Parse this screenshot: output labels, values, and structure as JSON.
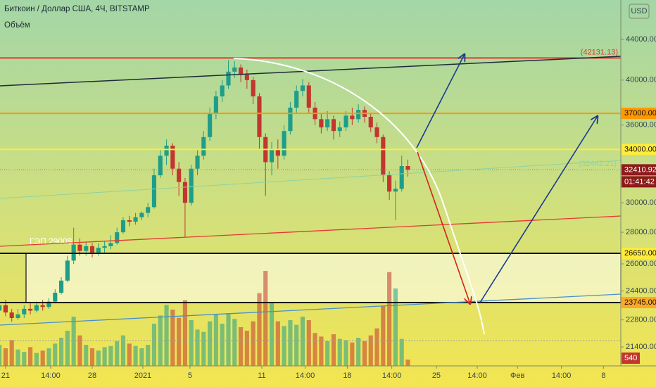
{
  "chart_data": {
    "type": "candlestick",
    "title": "Биткоин / Доллар США, 4Ч, BITSTAMP",
    "subtitle": "Объём",
    "currency": "USD",
    "log_scale": true,
    "up_color": "#1e9e8a",
    "down_color": "#c2362f",
    "xlim": [
      -0.45,
      49.7
    ],
    "ylim": [
      20470,
      48260
    ],
    "volume_lim": [
      0,
      9000
    ],
    "xticks": [
      {
        "value": 0,
        "label": "21"
      },
      {
        "value": 3.64,
        "label": "14:00"
      },
      {
        "value": 7,
        "label": "28"
      },
      {
        "value": 11.09,
        "label": "2021"
      },
      {
        "value": 14.9,
        "label": "5"
      },
      {
        "value": 20.7,
        "label": "11"
      },
      {
        "value": 24.2,
        "label": "14:00"
      },
      {
        "value": 27.6,
        "label": "18"
      },
      {
        "value": 31.2,
        "label": "14:00"
      },
      {
        "value": 34.8,
        "label": "25"
      },
      {
        "value": 38.1,
        "label": "14:00"
      },
      {
        "value": 41.35,
        "label": "Фев"
      },
      {
        "value": 44.9,
        "label": "14:00"
      },
      {
        "value": 48.3,
        "label": "8"
      }
    ],
    "yticks": [
      {
        "value": 44000,
        "label": "44000.00"
      },
      {
        "value": 40000,
        "label": "40000.00"
      },
      {
        "value": 36000,
        "label": "36000.00"
      },
      {
        "value": 30000,
        "label": "30000.00"
      },
      {
        "value": 28000,
        "label": "28000.00"
      },
      {
        "value": 26000,
        "label": "26000.00"
      },
      {
        "value": 24400,
        "label": "24400.00"
      },
      {
        "value": 22800,
        "label": "22800.00"
      },
      {
        "value": 21400,
        "label": "21400.00"
      }
    ],
    "levels": [
      {
        "value": 42131.13,
        "label": "(42131.13)",
        "color": "#e53935"
      },
      {
        "value": 37000,
        "label": "37000.00",
        "color": "#ff9800"
      },
      {
        "value": 34000,
        "label": "34000.00",
        "color": "#ffeb3b"
      },
      {
        "value": 26650,
        "label": "26650.00",
        "color": "#ffeb3b"
      },
      {
        "value": 23745,
        "label": "23745.00",
        "color": "#ffa726"
      },
      {
        "value": 32410.92,
        "label": "32410.92",
        "color": "#8e1b1b"
      }
    ],
    "countdown": "01:41:42",
    "trend_label": "(32442.21)",
    "gap_label": "ГЭП 2900$",
    "x": [
      -0.5,
      0,
      0.5,
      1,
      1.5,
      2,
      2.5,
      3,
      3.5,
      4,
      4.5,
      5,
      5.5,
      6,
      6.5,
      7,
      7.5,
      8,
      8.5,
      9,
      9.5,
      10,
      10.5,
      11,
      11.5,
      12,
      12.5,
      13,
      13.5,
      14,
      14.5,
      15,
      15.5,
      16,
      16.5,
      17,
      17.5,
      18,
      18.5,
      19,
      19.5,
      20,
      20.5,
      21,
      21.5,
      22,
      22.5,
      23,
      23.5,
      24,
      24.5,
      25,
      25.5,
      26,
      26.5,
      27,
      27.5,
      28,
      28.5,
      29,
      29.5,
      30,
      30.5,
      31,
      31.5,
      32,
      32.5
    ],
    "open": [
      23300,
      23600,
      23200,
      22900,
      23100,
      23400,
      23300,
      23600,
      23500,
      23800,
      24300,
      25000,
      26200,
      27200,
      26800,
      27100,
      26700,
      27000,
      27100,
      27300,
      28000,
      28800,
      28700,
      29000,
      29300,
      29700,
      32000,
      33500,
      34300,
      32500,
      31500,
      30000,
      32500,
      33500,
      35000,
      37000,
      38500,
      39500,
      40800,
      41200,
      40500,
      40000,
      38500,
      35000,
      33000,
      34000,
      33500,
      35500,
      37500,
      39000,
      39500,
      37500,
      36500,
      35800,
      36500,
      35500,
      35800,
      36800,
      36500,
      37300,
      36700,
      35800,
      35000,
      32000,
      30800,
      31000,
      32700
    ],
    "high": [
      23800,
      23900,
      23400,
      23400,
      23600,
      23700,
      23800,
      23900,
      24000,
      24500,
      25200,
      26500,
      28300,
      27600,
      27400,
      27300,
      27300,
      27400,
      27800,
      28300,
      29000,
      29100,
      29300,
      29400,
      30000,
      32500,
      34000,
      34800,
      34500,
      33000,
      31800,
      32800,
      34000,
      35500,
      37500,
      39000,
      40000,
      41900,
      41800,
      41500,
      41000,
      40300,
      38800,
      35300,
      34600,
      34800,
      36000,
      38000,
      39500,
      40100,
      39800,
      38000,
      37000,
      37200,
      36800,
      36300,
      37200,
      37500,
      37800,
      37600,
      37000,
      36200,
      35200,
      32300,
      31600,
      33500,
      33200
    ],
    "low": [
      23100,
      23000,
      22700,
      22800,
      22900,
      23100,
      23200,
      23300,
      23400,
      23700,
      24200,
      24900,
      26000,
      26500,
      26500,
      26400,
      26500,
      26700,
      26900,
      27200,
      27900,
      28400,
      28500,
      28800,
      29000,
      29600,
      31800,
      32800,
      32000,
      30500,
      27700,
      29800,
      32000,
      33200,
      34700,
      36500,
      38000,
      39200,
      40200,
      39800,
      39200,
      37800,
      34000,
      30500,
      32000,
      32500,
      33200,
      35200,
      37000,
      38500,
      37000,
      36000,
      35300,
      35500,
      34800,
      35000,
      35500,
      36000,
      36200,
      36200,
      35400,
      34500,
      31500,
      30200,
      28800,
      30800,
      31900
    ],
    "close": [
      23600,
      23200,
      22900,
      23100,
      23400,
      23300,
      23600,
      23500,
      23800,
      24300,
      25000,
      26200,
      27200,
      26800,
      27100,
      26700,
      27000,
      27100,
      27300,
      28000,
      28800,
      28700,
      29000,
      29300,
      29700,
      32000,
      33500,
      34300,
      32500,
      31500,
      30000,
      32500,
      33500,
      35000,
      37000,
      38500,
      39500,
      40800,
      41200,
      40500,
      40000,
      38500,
      35000,
      33000,
      34000,
      33500,
      35500,
      37500,
      39000,
      39500,
      37500,
      36500,
      35800,
      36500,
      35500,
      35800,
      36800,
      36500,
      37300,
      36700,
      35800,
      35000,
      32000,
      30800,
      31000,
      32700,
      32410.92
    ],
    "volume": [
      1800,
      1500,
      2200,
      1400,
      1200,
      1600,
      1100,
      1300,
      1500,
      1900,
      2400,
      3000,
      4200,
      2600,
      1800,
      1500,
      1300,
      1600,
      1700,
      2100,
      2600,
      1900,
      1700,
      1500,
      1800,
      3600,
      4300,
      5200,
      4800,
      4100,
      5600,
      3900,
      3100,
      2900,
      3800,
      4400,
      3600,
      4500,
      4000,
      3300,
      3000,
      3800,
      6200,
      8100,
      5400,
      3800,
      3400,
      3900,
      3500,
      4200,
      3900,
      2800,
      2500,
      2100,
      2700,
      2300,
      2200,
      2000,
      2400,
      2100,
      2600,
      3200,
      5100,
      8000,
      6600,
      2300,
      540
    ]
  }
}
